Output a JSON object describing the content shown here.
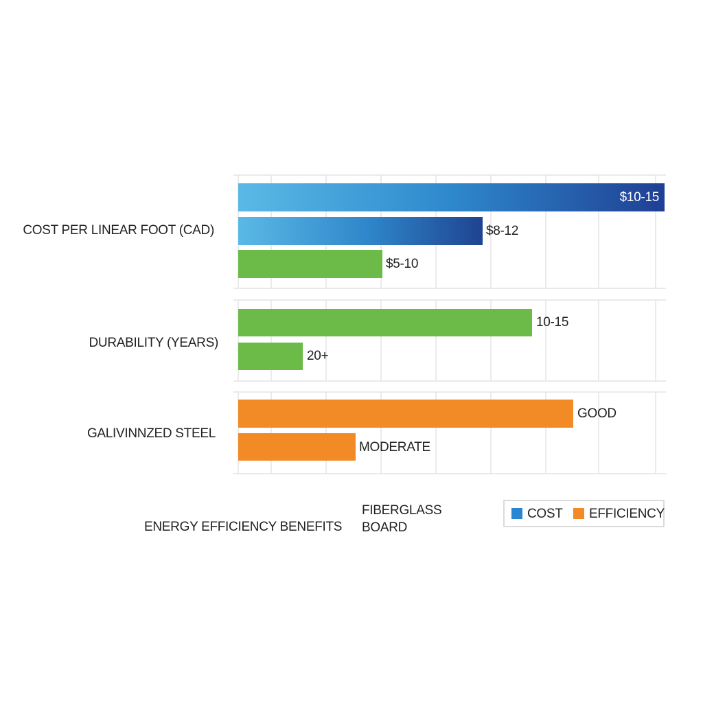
{
  "groups": [
    {
      "label": "COST PER LINEAR FOOT (CAD)",
      "bar_labels": [
        "$10-15",
        "$8-12",
        "$5-10"
      ]
    },
    {
      "label": "DURABILITY (YEARS)",
      "bar_labels": [
        "10-15",
        "20+"
      ]
    },
    {
      "label": "GALIVINNZED STEEL",
      "bar_labels": [
        "GOOD",
        "MODERATE"
      ]
    }
  ],
  "footer_labels": {
    "left": "ENERGY EFFICIENCY BENEFITS",
    "middle": [
      "FIBERGLASS",
      "BOARD"
    ]
  },
  "legend": [
    {
      "name": "COST",
      "color": "#2b86d2"
    },
    {
      "name": "EFFICIENCY",
      "color": "#f28a26"
    }
  ]
}
